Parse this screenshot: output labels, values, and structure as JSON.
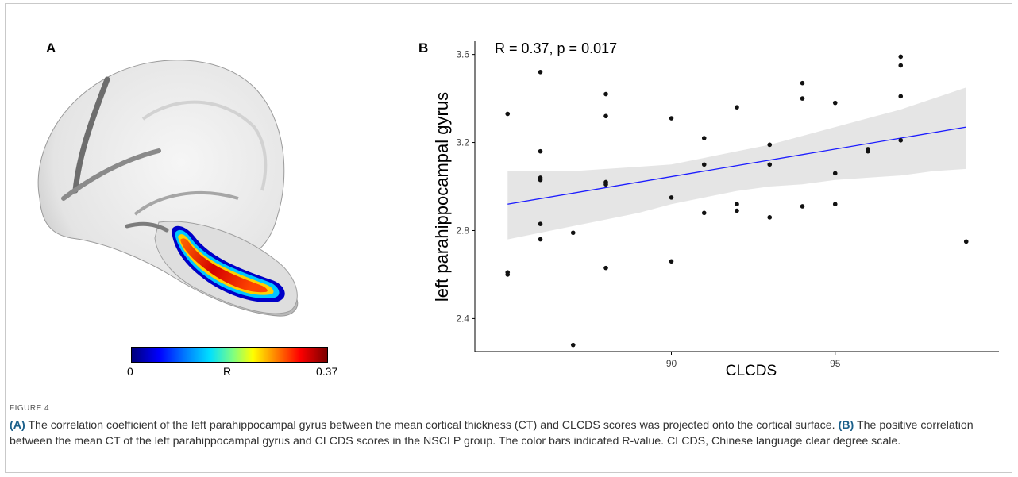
{
  "panel_a": {
    "label": "A",
    "colorbar": {
      "min_label": "0",
      "mid_label": "R",
      "max_label": "0.37"
    }
  },
  "panel_b": {
    "label": "B"
  },
  "chart_data": {
    "type": "scatter",
    "annotation": "R = 0.37, p = 0.017",
    "xlabel": "CLCDS",
    "ylabel": "left parahippocampal gyrus",
    "x_ticks": [
      90,
      95
    ],
    "y_ticks": [
      2.4,
      2.8,
      3.2,
      3.6
    ],
    "xlim": [
      84,
      100
    ],
    "ylim": [
      2.25,
      3.66
    ],
    "grid": false,
    "regression": {
      "x_start": 85.0,
      "y_start": 2.92,
      "x_end": 99.0,
      "y_end": 3.27,
      "color": "#1c1cff"
    },
    "confidence_band": {
      "x": [
        85.0,
        86.0,
        87.0,
        88.0,
        89.0,
        90.0,
        91.0,
        92.0,
        93.0,
        94.0,
        95.0,
        96.0,
        97.0,
        98.0,
        99.0
      ],
      "upper": [
        3.07,
        3.07,
        3.07,
        3.08,
        3.09,
        3.1,
        3.13,
        3.16,
        3.19,
        3.23,
        3.27,
        3.31,
        3.35,
        3.4,
        3.45
      ],
      "lower": [
        2.76,
        2.79,
        2.82,
        2.85,
        2.88,
        2.92,
        2.95,
        2.98,
        3.0,
        3.01,
        3.03,
        3.04,
        3.05,
        3.07,
        3.08
      ]
    },
    "points": [
      {
        "x": 85.0,
        "y": 3.33
      },
      {
        "x": 85.0,
        "y": 2.61
      },
      {
        "x": 85.0,
        "y": 2.6
      },
      {
        "x": 86.0,
        "y": 3.52
      },
      {
        "x": 86.0,
        "y": 3.16
      },
      {
        "x": 86.0,
        "y": 3.04
      },
      {
        "x": 86.0,
        "y": 3.03
      },
      {
        "x": 86.0,
        "y": 2.83
      },
      {
        "x": 86.0,
        "y": 2.76
      },
      {
        "x": 87.0,
        "y": 2.79
      },
      {
        "x": 87.0,
        "y": 2.28
      },
      {
        "x": 88.0,
        "y": 3.42
      },
      {
        "x": 88.0,
        "y": 3.32
      },
      {
        "x": 88.0,
        "y": 3.02
      },
      {
        "x": 88.0,
        "y": 3.01
      },
      {
        "x": 88.0,
        "y": 2.63
      },
      {
        "x": 90.0,
        "y": 3.31
      },
      {
        "x": 90.0,
        "y": 2.95
      },
      {
        "x": 90.0,
        "y": 2.66
      },
      {
        "x": 91.0,
        "y": 3.22
      },
      {
        "x": 91.0,
        "y": 3.1
      },
      {
        "x": 91.0,
        "y": 2.88
      },
      {
        "x": 92.0,
        "y": 3.36
      },
      {
        "x": 92.0,
        "y": 2.92
      },
      {
        "x": 92.0,
        "y": 2.89
      },
      {
        "x": 93.0,
        "y": 3.19
      },
      {
        "x": 93.0,
        "y": 3.1
      },
      {
        "x": 93.0,
        "y": 2.86
      },
      {
        "x": 94.0,
        "y": 3.47
      },
      {
        "x": 94.0,
        "y": 3.4
      },
      {
        "x": 94.0,
        "y": 2.91
      },
      {
        "x": 95.0,
        "y": 3.38
      },
      {
        "x": 95.0,
        "y": 3.06
      },
      {
        "x": 95.0,
        "y": 2.92
      },
      {
        "x": 96.0,
        "y": 3.17
      },
      {
        "x": 96.0,
        "y": 3.16
      },
      {
        "x": 97.0,
        "y": 3.59
      },
      {
        "x": 97.0,
        "y": 3.55
      },
      {
        "x": 97.0,
        "y": 3.41
      },
      {
        "x": 97.0,
        "y": 3.21
      },
      {
        "x": 99.0,
        "y": 2.75
      }
    ]
  },
  "caption": {
    "figure_label": "FIGURE 4",
    "a_tag": "(A)",
    "a_text": " The correlation coefficient of the left parahippocampal gyrus between the mean cortical thickness (CT) and CLCDS scores was projected onto the cortical surface. ",
    "b_tag": "(B)",
    "b_text": " The positive correlation between the mean CT of the left parahippocampal gyrus and CLCDS scores in the NSCLP group. The color bars indicated R-value. CLCDS, Chinese language clear degree scale."
  }
}
